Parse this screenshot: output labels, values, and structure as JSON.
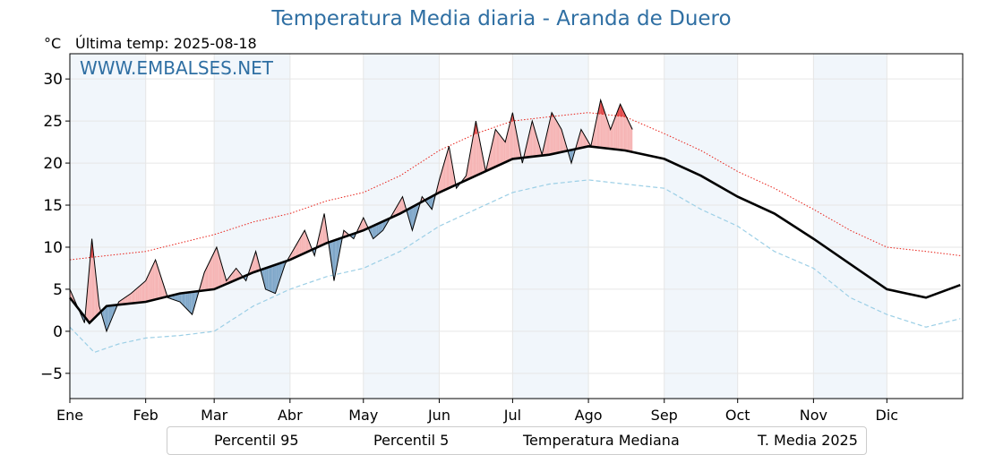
{
  "chart_data": {
    "type": "line",
    "title": "Temperatura Media diaria - Aranda de Duero",
    "unit_label": "°C",
    "last_temp_label": "Última temp: 2025-08-18",
    "watermark": "WWW.EMBALSES.NET",
    "ylim": [
      -8,
      33
    ],
    "yticks": [
      -5,
      0,
      5,
      10,
      15,
      20,
      25,
      30
    ],
    "x_days": 365,
    "months": [
      {
        "label": "Ene",
        "start_day": 0
      },
      {
        "label": "Feb",
        "start_day": 31
      },
      {
        "label": "Mar",
        "start_day": 59
      },
      {
        "label": "Abr",
        "start_day": 90
      },
      {
        "label": "May",
        "start_day": 120
      },
      {
        "label": "Jun",
        "start_day": 151
      },
      {
        "label": "Jul",
        "start_day": 181
      },
      {
        "label": "Ago",
        "start_day": 212
      },
      {
        "label": "Sep",
        "start_day": 243
      },
      {
        "label": "Oct",
        "start_day": 273
      },
      {
        "label": "Nov",
        "start_day": 304
      },
      {
        "label": "Dic",
        "start_day": 334
      }
    ],
    "shaded_months": [
      "Ene",
      "Mar",
      "May",
      "Jul",
      "Sep",
      "Nov"
    ],
    "grid": true,
    "series": [
      {
        "name": "Percentil 95",
        "style": "dotted",
        "color": "#e8221a",
        "points": [
          [
            0,
            8.5
          ],
          [
            15,
            9
          ],
          [
            31,
            9.5
          ],
          [
            45,
            10.5
          ],
          [
            59,
            11.5
          ],
          [
            75,
            13
          ],
          [
            90,
            14
          ],
          [
            105,
            15.5
          ],
          [
            120,
            16.5
          ],
          [
            135,
            18.5
          ],
          [
            151,
            21.5
          ],
          [
            166,
            23.5
          ],
          [
            181,
            25
          ],
          [
            196,
            25.5
          ],
          [
            212,
            26
          ],
          [
            227,
            25.5
          ],
          [
            243,
            23.5
          ],
          [
            258,
            21.5
          ],
          [
            273,
            19
          ],
          [
            288,
            17
          ],
          [
            304,
            14.5
          ],
          [
            319,
            12
          ],
          [
            334,
            10
          ],
          [
            350,
            9.5
          ],
          [
            364,
            9
          ]
        ]
      },
      {
        "name": "Percentil 5",
        "style": "dashed",
        "color": "#9ccfe6",
        "points": [
          [
            0,
            0.5
          ],
          [
            10,
            -2.5
          ],
          [
            20,
            -1.5
          ],
          [
            31,
            -0.8
          ],
          [
            45,
            -0.5
          ],
          [
            59,
            0
          ],
          [
            75,
            3
          ],
          [
            90,
            5
          ],
          [
            105,
            6.5
          ],
          [
            120,
            7.5
          ],
          [
            135,
            9.5
          ],
          [
            151,
            12.5
          ],
          [
            166,
            14.5
          ],
          [
            181,
            16.5
          ],
          [
            196,
            17.5
          ],
          [
            212,
            18
          ],
          [
            227,
            17.5
          ],
          [
            243,
            17
          ],
          [
            258,
            14.5
          ],
          [
            273,
            12.5
          ],
          [
            288,
            9.5
          ],
          [
            304,
            7.5
          ],
          [
            319,
            4
          ],
          [
            334,
            2
          ],
          [
            350,
            0.5
          ],
          [
            364,
            1.5
          ]
        ]
      },
      {
        "name": "Temperatura Mediana",
        "style": "solid-thick",
        "color": "#000000",
        "points": [
          [
            0,
            4
          ],
          [
            8,
            1
          ],
          [
            15,
            3
          ],
          [
            31,
            3.5
          ],
          [
            45,
            4.5
          ],
          [
            59,
            5
          ],
          [
            75,
            7
          ],
          [
            90,
            8.5
          ],
          [
            105,
            10.5
          ],
          [
            120,
            12
          ],
          [
            135,
            14
          ],
          [
            151,
            16.5
          ],
          [
            166,
            18.5
          ],
          [
            181,
            20.5
          ],
          [
            196,
            21
          ],
          [
            212,
            22
          ],
          [
            227,
            21.5
          ],
          [
            243,
            20.5
          ],
          [
            258,
            18.5
          ],
          [
            273,
            16
          ],
          [
            288,
            14
          ],
          [
            304,
            11
          ],
          [
            319,
            8
          ],
          [
            334,
            5
          ],
          [
            350,
            4
          ],
          [
            364,
            5.5
          ]
        ]
      },
      {
        "name": "T. Media 2025",
        "style": "solid-thin",
        "color": "#000000",
        "points": [
          [
            0,
            5
          ],
          [
            6,
            1
          ],
          [
            9,
            11
          ],
          [
            12,
            3
          ],
          [
            15,
            0
          ],
          [
            20,
            3.5
          ],
          [
            25,
            4.5
          ],
          [
            31,
            6
          ],
          [
            35,
            8.5
          ],
          [
            40,
            4
          ],
          [
            45,
            3.5
          ],
          [
            50,
            2
          ],
          [
            55,
            7
          ],
          [
            60,
            10
          ],
          [
            64,
            6
          ],
          [
            68,
            7.5
          ],
          [
            72,
            6
          ],
          [
            76,
            9.5
          ],
          [
            80,
            5
          ],
          [
            84,
            4.5
          ],
          [
            88,
            8
          ],
          [
            92,
            10
          ],
          [
            96,
            12
          ],
          [
            100,
            9
          ],
          [
            104,
            14
          ],
          [
            108,
            6
          ],
          [
            112,
            12
          ],
          [
            116,
            11
          ],
          [
            120,
            13.5
          ],
          [
            124,
            11
          ],
          [
            128,
            12
          ],
          [
            132,
            14
          ],
          [
            136,
            16
          ],
          [
            140,
            12
          ],
          [
            144,
            16
          ],
          [
            148,
            14.5
          ],
          [
            151,
            18
          ],
          [
            155,
            22
          ],
          [
            158,
            17
          ],
          [
            162,
            18.5
          ],
          [
            166,
            25
          ],
          [
            170,
            19
          ],
          [
            174,
            24
          ],
          [
            178,
            22.5
          ],
          [
            181,
            26
          ],
          [
            185,
            20
          ],
          [
            189,
            25
          ],
          [
            193,
            21
          ],
          [
            197,
            26
          ],
          [
            201,
            24
          ],
          [
            205,
            20
          ],
          [
            209,
            24
          ],
          [
            213,
            22
          ],
          [
            217,
            27.5
          ],
          [
            221,
            24
          ],
          [
            225,
            27
          ],
          [
            230,
            24
          ]
        ]
      }
    ]
  },
  "legend": {
    "items": [
      "Percentil 95",
      "Percentil 5",
      "Temperatura Mediana",
      "T. Media 2025"
    ]
  }
}
